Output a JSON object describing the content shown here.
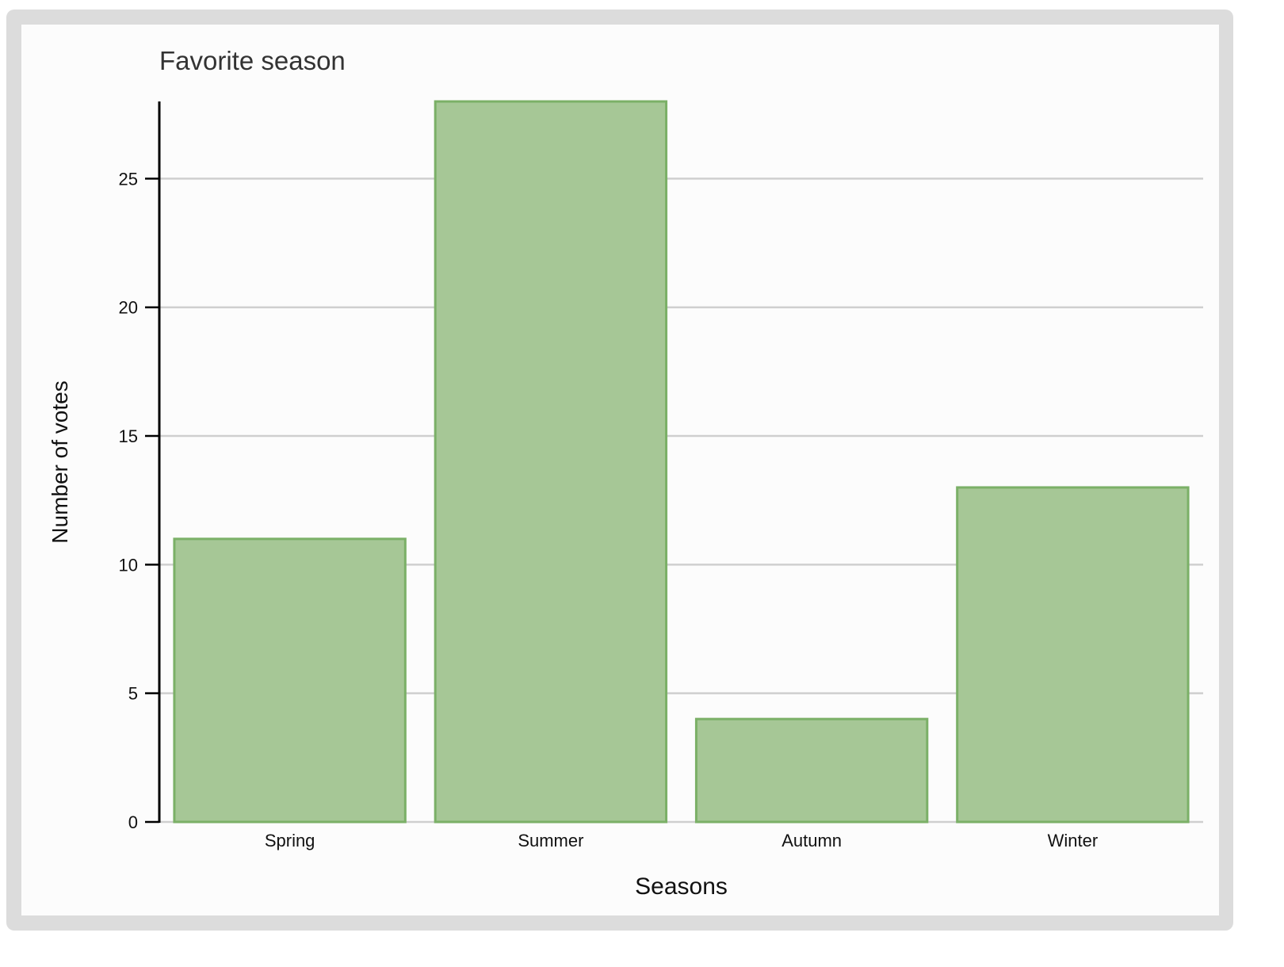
{
  "chart_data": {
    "type": "bar",
    "title": "Favorite season",
    "xlabel": "Seasons",
    "ylabel": "Number of votes",
    "categories": [
      "Spring",
      "Summer",
      "Autumn",
      "Winter"
    ],
    "values": [
      11,
      28,
      4,
      13
    ],
    "yticks": [
      "0",
      "5",
      "10",
      "15",
      "20",
      "25"
    ],
    "ylim": [
      0,
      28
    ],
    "grid": true,
    "legend": "none",
    "colors": {
      "bar_fill": "#a6c796",
      "bar_stroke": "#7bb067",
      "grid": "#cfcfcf",
      "axis": "#000000"
    }
  }
}
